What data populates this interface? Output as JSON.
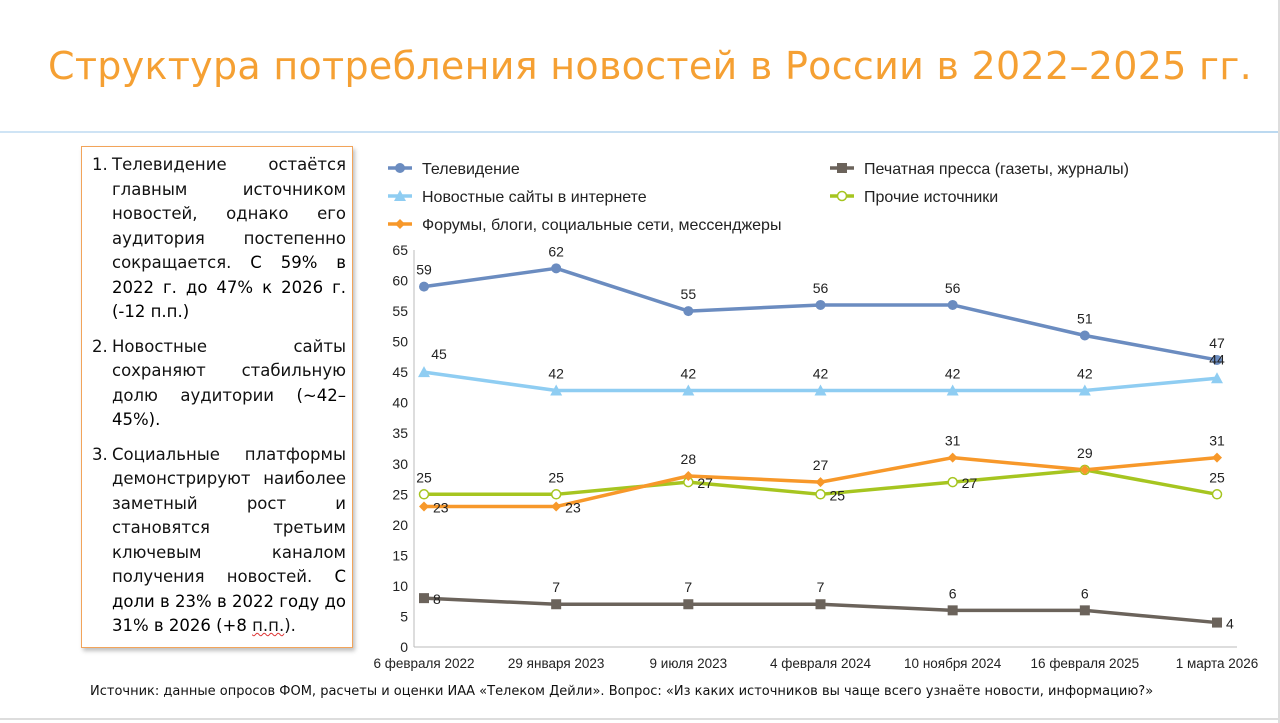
{
  "title": "Структура потребления новостей в России в 2022–2025 гг.",
  "notes": [
    {
      "num": "1.",
      "plain": "Телевидение остаётся главным источником новостей, однако его аудитория постепенно сокращается.",
      "bold": " С 59% в 2022 г. до 47% к 2026 г. (-12 п.п.)"
    },
    {
      "num": "2.",
      "plain": "Новостные сайты сохраняют стабильную долю аудитории",
      "bold": " (~42–45%)."
    },
    {
      "num": "3.",
      "plain": "Социальные платформы демонстрируют наиболее заметный рост и становятся третьим ключевым каналом получения новостей.",
      "bold": " С доли в 23% в 2022 году до 31% в 2026 (+8 ",
      "underlined": "п.п.",
      "tail": ")."
    }
  ],
  "source": "Источник: данные опросов ФОМ, расчеты и оценки ИАА «Телеком Дейли». Вопрос: «Из каких источников вы чаще всего узнаёте новости, информацию?»",
  "chart_data": {
    "type": "line",
    "title": "",
    "xlabel": "",
    "ylabel": "",
    "ylim": [
      0,
      65
    ],
    "yticks": [
      0,
      5,
      10,
      15,
      20,
      25,
      30,
      35,
      40,
      45,
      50,
      55,
      60,
      65
    ],
    "categories": [
      "6 февраля 2022",
      "29 января 2023",
      "9 июля 2023",
      "4 февраля 2024",
      "10 ноября 2024",
      "16 февраля 2025",
      "1 марта 2026"
    ],
    "legend_position": "top",
    "series": [
      {
        "name": "Телевидение",
        "color": "#6b8cc0",
        "marker": "circle",
        "values": [
          59,
          62,
          55,
          56,
          56,
          51,
          47
        ]
      },
      {
        "name": "Печатная пресса (газеты, журналы)",
        "color": "#6b635b",
        "marker": "square",
        "values": [
          8,
          7,
          7,
          7,
          6,
          6,
          4
        ]
      },
      {
        "name": "Новостные сайты в интернете",
        "color": "#8fcdf2",
        "marker": "triangle",
        "values": [
          45,
          42,
          42,
          42,
          42,
          42,
          44
        ]
      },
      {
        "name": "Прочие источники",
        "color": "#a6c520",
        "marker": "open-circle",
        "values": [
          25,
          25,
          27,
          25,
          27,
          29,
          25
        ]
      },
      {
        "name": "Форумы, блоги, социальные сети, мессенджеры",
        "color": "#f7982a",
        "marker": "diamond",
        "values": [
          23,
          23,
          28,
          27,
          31,
          29,
          31
        ]
      }
    ]
  }
}
